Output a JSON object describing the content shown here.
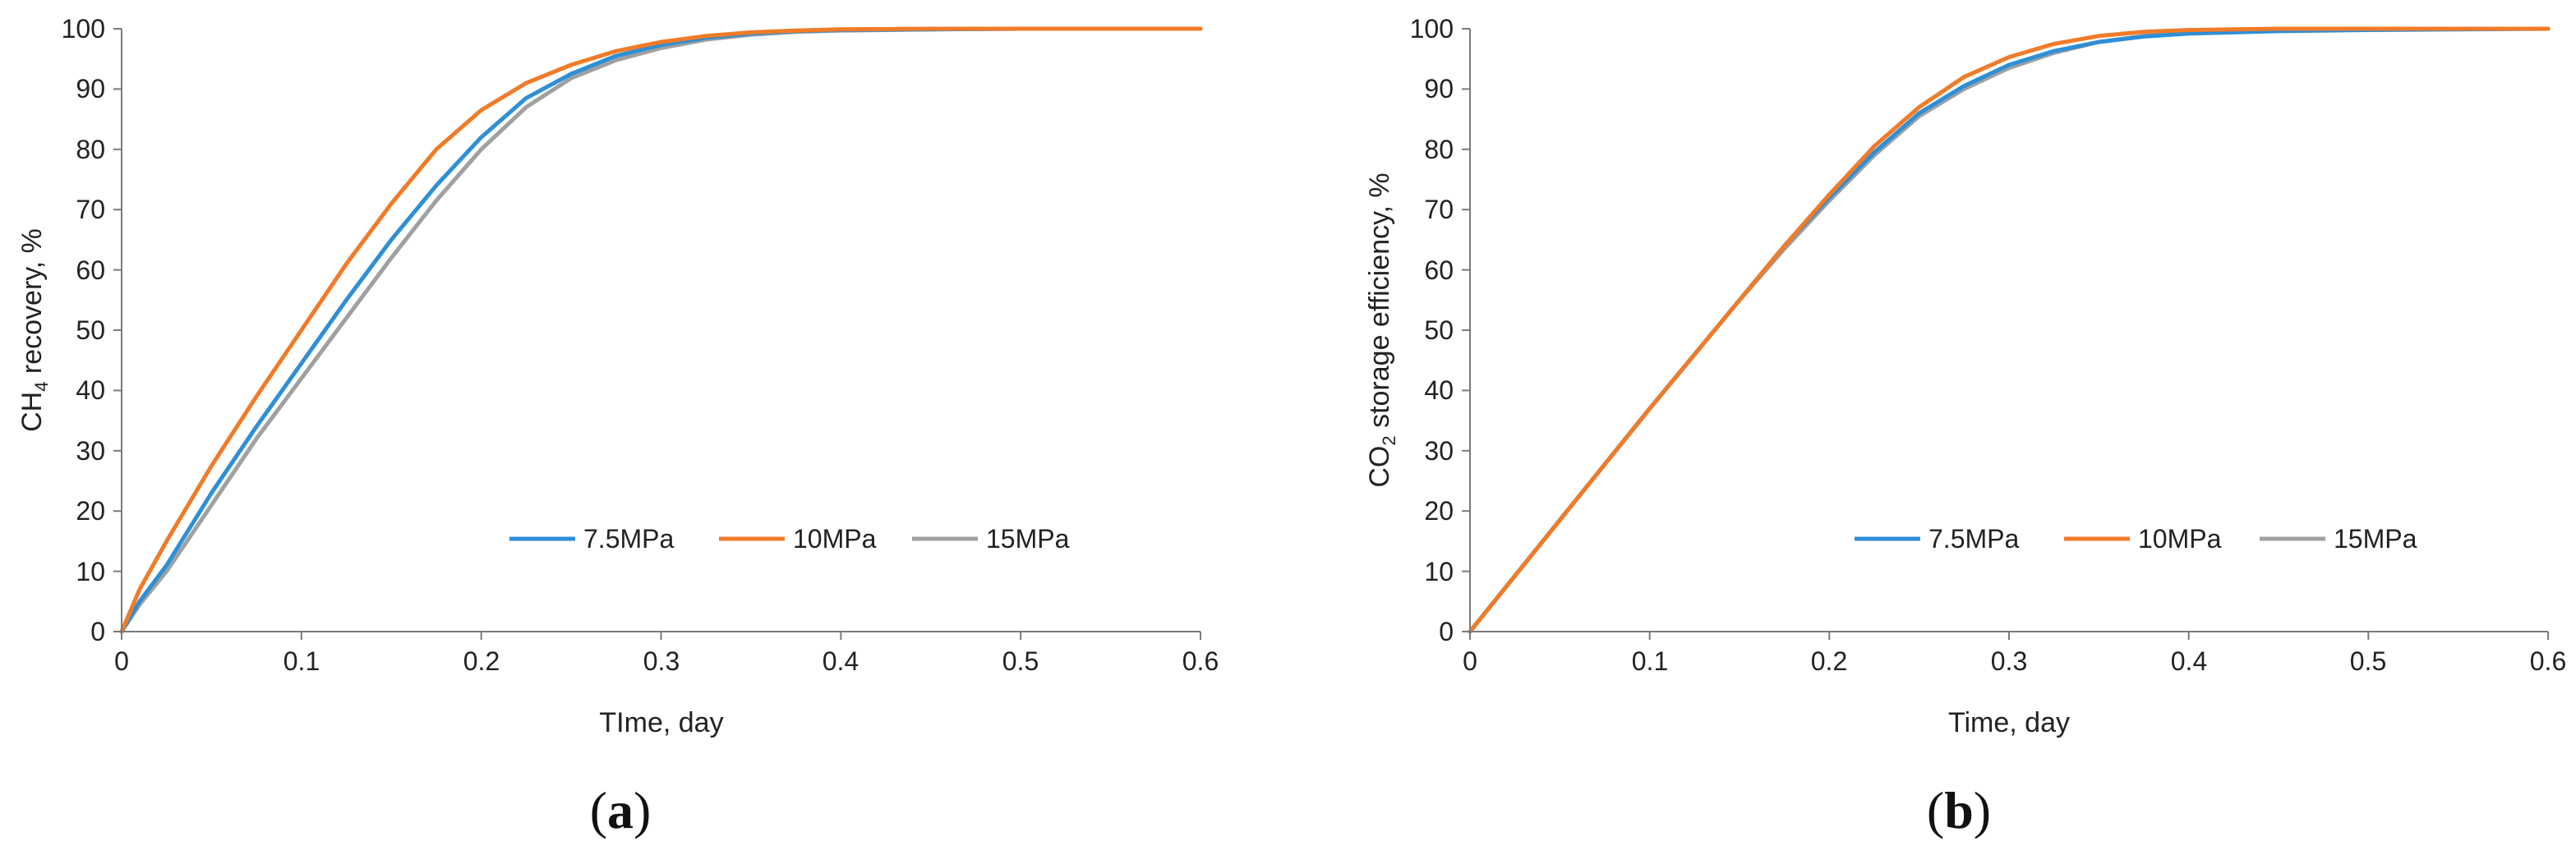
{
  "chart_data": [
    {
      "type": "line",
      "panel_label": "(a)",
      "xlabel": "TIme, day",
      "ylabel_main": "CH",
      "ylabel_sub": "4",
      "ylabel_rest": " recovery, %",
      "xlim": [
        0,
        0.6
      ],
      "ylim": [
        0,
        100
      ],
      "xticks": [
        "0",
        "0.1",
        "0.2",
        "0.3",
        "0.4",
        "0.5",
        "0.6"
      ],
      "yticks": [
        "0",
        "10",
        "20",
        "30",
        "40",
        "50",
        "60",
        "70",
        "80",
        "90",
        "100"
      ],
      "grid": false,
      "legend_position": "bottom-right",
      "series": [
        {
          "name": "7.5MPa",
          "color": "#2e8fd6",
          "x": [
            0,
            0.01,
            0.025,
            0.05,
            0.075,
            0.1,
            0.125,
            0.15,
            0.175,
            0.2,
            0.225,
            0.25,
            0.275,
            0.3,
            0.325,
            0.35,
            0.375,
            0.4,
            0.45,
            0.5,
            0.55,
            0.6
          ],
          "y": [
            0,
            5,
            11,
            23,
            34,
            44.5,
            55,
            65,
            74,
            82,
            88.5,
            92.5,
            95.5,
            97.3,
            98.5,
            99.2,
            99.6,
            99.8,
            99.9,
            100,
            100,
            100
          ]
        },
        {
          "name": "10MPa",
          "color": "#f07b28",
          "x": [
            0,
            0.01,
            0.025,
            0.05,
            0.075,
            0.1,
            0.125,
            0.15,
            0.175,
            0.2,
            0.225,
            0.25,
            0.275,
            0.3,
            0.325,
            0.35,
            0.375,
            0.4,
            0.45,
            0.5,
            0.55,
            0.6
          ],
          "y": [
            0,
            7,
            15,
            27.5,
            39,
            50,
            61,
            71,
            80,
            86.5,
            91,
            94,
            96.3,
            97.8,
            98.8,
            99.4,
            99.7,
            99.9,
            100,
            100,
            100,
            100
          ]
        },
        {
          "name": "15MPa",
          "color": "#a0a0a0",
          "x": [
            0,
            0.01,
            0.025,
            0.05,
            0.075,
            0.1,
            0.125,
            0.15,
            0.175,
            0.2,
            0.225,
            0.25,
            0.275,
            0.3,
            0.325,
            0.35,
            0.375,
            0.4,
            0.45,
            0.5,
            0.55,
            0.6
          ],
          "y": [
            0,
            4.5,
            10,
            21,
            32,
            42,
            52,
            62,
            71.5,
            80,
            87,
            91.8,
            94.8,
            96.8,
            98.2,
            99,
            99.5,
            99.7,
            99.9,
            100,
            100,
            100
          ]
        }
      ]
    },
    {
      "type": "line",
      "panel_label": "(b)",
      "xlabel": "Time, day",
      "ylabel_main": "CO",
      "ylabel_sub": "2",
      "ylabel_rest": " storage efficiency, %",
      "xlim": [
        0,
        0.6
      ],
      "ylim": [
        0,
        100
      ],
      "xticks": [
        "0",
        "0.1",
        "0.2",
        "0.3",
        "0.4",
        "0.5",
        "0.6"
      ],
      "yticks": [
        "0",
        "10",
        "20",
        "30",
        "40",
        "50",
        "60",
        "70",
        "80",
        "90",
        "100"
      ],
      "grid": false,
      "legend_position": "bottom-right",
      "series": [
        {
          "name": "7.5MPa",
          "color": "#2e8fd6",
          "x": [
            0,
            0.05,
            0.1,
            0.15,
            0.175,
            0.2,
            0.225,
            0.25,
            0.275,
            0.3,
            0.325,
            0.35,
            0.375,
            0.4,
            0.45,
            0.5,
            0.55,
            0.6
          ],
          "y": [
            0,
            18.5,
            37,
            55,
            64,
            72,
            79.5,
            86,
            90.5,
            94,
            96.3,
            97.8,
            98.7,
            99.2,
            99.6,
            99.8,
            99.9,
            100
          ]
        },
        {
          "name": "10MPa",
          "color": "#f07b28",
          "x": [
            0,
            0.05,
            0.1,
            0.15,
            0.175,
            0.2,
            0.225,
            0.25,
            0.275,
            0.3,
            0.325,
            0.35,
            0.375,
            0.4,
            0.45,
            0.5,
            0.55,
            0.6
          ],
          "y": [
            0,
            18.5,
            37,
            55,
            64,
            72.5,
            80.5,
            87,
            92,
            95.3,
            97.5,
            98.8,
            99.5,
            99.8,
            100,
            100,
            100,
            100
          ]
        },
        {
          "name": "15MPa",
          "color": "#a0a0a0",
          "x": [
            0,
            0.05,
            0.1,
            0.15,
            0.175,
            0.2,
            0.225,
            0.25,
            0.275,
            0.3,
            0.325,
            0.35,
            0.375,
            0.4,
            0.45,
            0.5,
            0.55,
            0.6
          ],
          "y": [
            0,
            18.5,
            37,
            55,
            63.5,
            71.5,
            79,
            85.5,
            90,
            93.5,
            96,
            97.8,
            98.8,
            99.3,
            99.7,
            99.9,
            100,
            100
          ]
        }
      ]
    }
  ]
}
